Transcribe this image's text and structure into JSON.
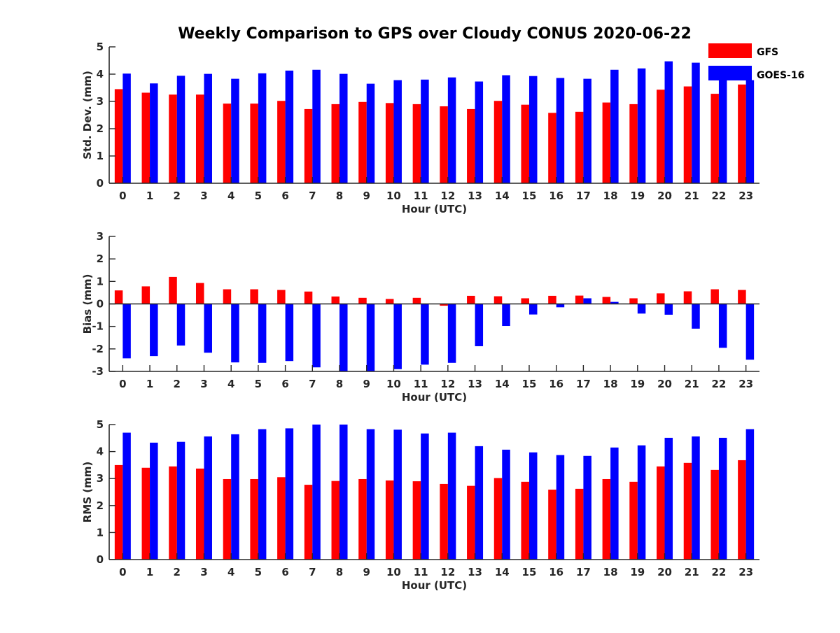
{
  "title": "Weekly Comparison to GPS over Cloudy CONUS 2020-06-22",
  "colors": {
    "GFS": "#ff0000",
    "GOES-16": "#0000ff",
    "axis": "#262626"
  },
  "legend": {
    "placement": "top-right",
    "entries": [
      "GFS",
      "GOES-16"
    ]
  },
  "chart_data": [
    {
      "type": "bar",
      "xlabel": "Hour (UTC)",
      "ylabel": "Std. Dev. (mm)",
      "ylim": [
        0,
        5
      ],
      "yticks": [
        0,
        1,
        2,
        3,
        4,
        5
      ],
      "categories": [
        "0",
        "1",
        "2",
        "3",
        "4",
        "5",
        "6",
        "7",
        "8",
        "9",
        "10",
        "11",
        "12",
        "13",
        "14",
        "15",
        "16",
        "17",
        "18",
        "19",
        "20",
        "21",
        "22",
        "23"
      ],
      "grid": false,
      "series": [
        {
          "name": "GFS",
          "values": [
            3.45,
            3.32,
            3.25,
            3.25,
            2.92,
            2.92,
            3.02,
            2.72,
            2.9,
            2.98,
            2.94,
            2.9,
            2.82,
            2.72,
            3.02,
            2.88,
            2.58,
            2.62,
            2.96,
            2.9,
            3.43,
            3.55,
            3.28,
            3.62
          ]
        },
        {
          "name": "GOES-16",
          "values": [
            4.02,
            3.66,
            3.94,
            4.01,
            3.83,
            4.03,
            4.13,
            4.16,
            4.01,
            3.65,
            3.78,
            3.8,
            3.88,
            3.73,
            3.96,
            3.93,
            3.86,
            3.83,
            4.16,
            4.21,
            4.47,
            4.42,
            4.05,
            3.78
          ]
        }
      ]
    },
    {
      "type": "bar",
      "xlabel": "Hour (UTC)",
      "ylabel": "Bias (mm)",
      "ylim": [
        -3,
        3
      ],
      "yticks": [
        -3,
        -2,
        -1,
        0,
        1,
        2,
        3
      ],
      "categories": [
        "0",
        "1",
        "2",
        "3",
        "4",
        "5",
        "6",
        "7",
        "8",
        "9",
        "10",
        "11",
        "12",
        "13",
        "14",
        "15",
        "16",
        "17",
        "18",
        "19",
        "20",
        "21",
        "22",
        "23"
      ],
      "grid": false,
      "series": [
        {
          "name": "GFS",
          "values": [
            0.6,
            0.78,
            1.2,
            0.93,
            0.65,
            0.65,
            0.62,
            0.55,
            0.33,
            0.27,
            0.22,
            0.27,
            -0.08,
            0.36,
            0.34,
            0.25,
            0.36,
            0.37,
            0.31,
            0.25,
            0.47,
            0.56,
            0.65,
            0.62
          ]
        },
        {
          "name": "GOES-16",
          "values": [
            -2.42,
            -2.32,
            -1.85,
            -2.17,
            -2.6,
            -2.62,
            -2.54,
            -2.82,
            -3.0,
            -3.0,
            -2.9,
            -2.7,
            -2.62,
            -1.88,
            -0.98,
            -0.47,
            -0.15,
            0.25,
            0.09,
            -0.43,
            -0.48,
            -1.1,
            -1.95,
            -2.48
          ]
        }
      ]
    },
    {
      "type": "bar",
      "xlabel": "Hour (UTC)",
      "ylabel": "RMS (mm)",
      "ylim": [
        0,
        5
      ],
      "yticks": [
        0,
        1,
        2,
        3,
        4,
        5
      ],
      "categories": [
        "0",
        "1",
        "2",
        "3",
        "4",
        "5",
        "6",
        "7",
        "8",
        "9",
        "10",
        "11",
        "12",
        "13",
        "14",
        "15",
        "16",
        "17",
        "18",
        "19",
        "20",
        "21",
        "22",
        "23"
      ],
      "grid": false,
      "series": [
        {
          "name": "GFS",
          "values": [
            3.5,
            3.4,
            3.45,
            3.37,
            2.98,
            2.98,
            3.05,
            2.77,
            2.91,
            2.98,
            2.93,
            2.9,
            2.8,
            2.73,
            3.02,
            2.88,
            2.59,
            2.62,
            2.98,
            2.88,
            3.45,
            3.58,
            3.32,
            3.68
          ]
        },
        {
          "name": "GOES-16",
          "values": [
            4.7,
            4.33,
            4.36,
            4.56,
            4.64,
            4.83,
            4.86,
            5.0,
            5.0,
            4.83,
            4.81,
            4.67,
            4.7,
            4.2,
            4.07,
            3.97,
            3.87,
            3.84,
            4.15,
            4.23,
            4.51,
            4.56,
            4.51,
            4.83
          ]
        }
      ]
    }
  ]
}
